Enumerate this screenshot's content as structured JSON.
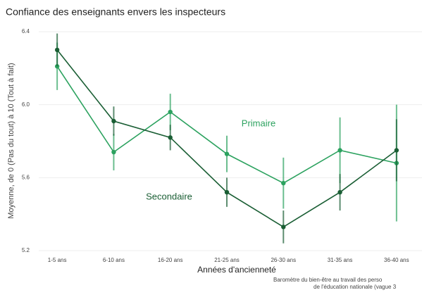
{
  "chart_data": {
    "type": "line",
    "title": "Confiance des enseignants envers les inspecteurs",
    "y_label": "Moyenne, de 0 (Pas du tout) à 10 (Tout à fait)",
    "x_label": "Années d'ancienneté",
    "caption": [
      "Baromètre du bien-être au travail des perso",
      "de l'éducation nationale (vague 3"
    ],
    "categories": [
      "1-5 ans",
      "6-10 ans",
      "16-20 ans",
      "21-25 ans",
      "26-30 ans",
      "31-35 ans",
      "36-40 ans"
    ],
    "series": [
      {
        "name": "Primaire",
        "color": "#2ca25f",
        "values": [
          6.21,
          5.74,
          5.96,
          5.73,
          5.57,
          5.75,
          5.68
        ],
        "errors": [
          0.13,
          0.1,
          0.1,
          0.1,
          0.14,
          0.18,
          0.32
        ]
      },
      {
        "name": "Secondaire",
        "color": "#1a5e34",
        "values": [
          6.3,
          5.91,
          5.82,
          5.52,
          5.33,
          5.52,
          5.75
        ],
        "errors": [
          0.09,
          0.08,
          0.07,
          0.08,
          0.09,
          0.1,
          0.17
        ]
      }
    ],
    "ylim": [
      5.2,
      6.4
    ],
    "yticks": [
      5.2,
      5.6,
      {
        "value": 6,
        "label": "6.0"
      },
      6.4
    ],
    "grid": true
  }
}
